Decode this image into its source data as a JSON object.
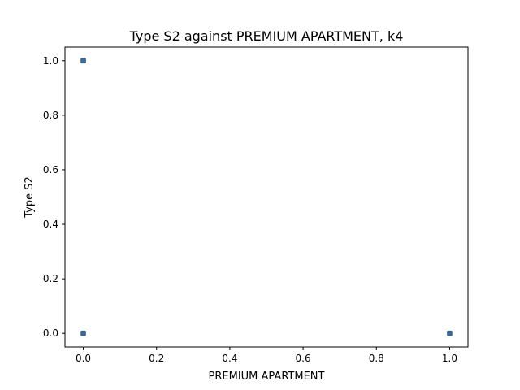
{
  "chart_data": {
    "type": "scatter",
    "title": "Type S2 against PREMIUM APARTMENT, k4",
    "xlabel": "PREMIUM APARTMENT",
    "ylabel": "Type S2",
    "xlim": [
      -0.05,
      1.05
    ],
    "ylim": [
      -0.05,
      1.05
    ],
    "xticks": [
      "0.0",
      "0.2",
      "0.4",
      "0.6",
      "0.8",
      "1.0"
    ],
    "yticks": [
      "0.0",
      "0.2",
      "0.4",
      "0.6",
      "0.8",
      "1.0"
    ],
    "grid": false,
    "marker_color": "#3b6a94",
    "points": [
      {
        "x": 0.0,
        "y": 1.0
      },
      {
        "x": 0.0,
        "y": 0.0
      },
      {
        "x": 1.0,
        "y": 0.0
      }
    ]
  }
}
